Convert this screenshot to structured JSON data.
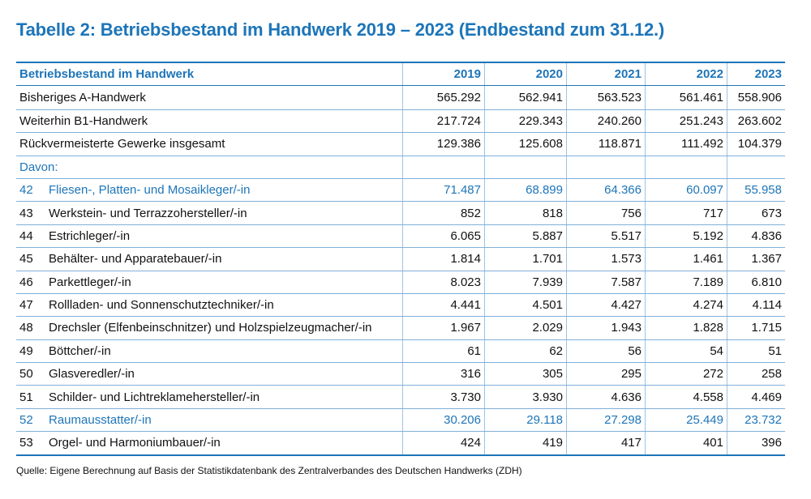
{
  "title": "Tabelle 2: Betriebsbestand im Handwerk 2019 – 2023 (Endbestand zum 31.12.)",
  "table": {
    "header": {
      "label": "Betriebsbestand im Handwerk",
      "years": [
        "2019",
        "2020",
        "2021",
        "2022",
        "2023"
      ]
    },
    "rows": [
      {
        "num": "",
        "label": "Bisheriges A-Handwerk",
        "values": [
          "565.292",
          "562.941",
          "563.523",
          "561.461",
          "558.906"
        ],
        "highlight": false
      },
      {
        "num": "",
        "label": "Weiterhin B1-Handwerk",
        "values": [
          "217.724",
          "229.343",
          "240.260",
          "251.243",
          "263.602"
        ],
        "highlight": false
      },
      {
        "num": "",
        "label": "Rückvermeisterte Gewerke insgesamt",
        "values": [
          "129.386",
          "125.608",
          "118.871",
          "111.492",
          "104.379"
        ],
        "highlight": false
      },
      {
        "num": "",
        "label": "Davon:",
        "values": [
          "",
          "",
          "",
          "",
          ""
        ],
        "highlight": true,
        "section": true
      },
      {
        "num": "42",
        "label": "Fliesen-, Platten- und Mosaikleger/-in",
        "values": [
          "71.487",
          "68.899",
          "64.366",
          "60.097",
          "55.958"
        ],
        "highlight": true
      },
      {
        "num": "43",
        "label": "Werkstein- und Terrazzohersteller/-in",
        "values": [
          "852",
          "818",
          "756",
          "717",
          "673"
        ],
        "highlight": false
      },
      {
        "num": "44",
        "label": "Estrichleger/-in",
        "values": [
          "6.065",
          "5.887",
          "5.517",
          "5.192",
          "4.836"
        ],
        "highlight": false
      },
      {
        "num": "45",
        "label": "Behälter- und Apparatebauer/-in",
        "values": [
          "1.814",
          "1.701",
          "1.573",
          "1.461",
          "1.367"
        ],
        "highlight": false
      },
      {
        "num": "46",
        "label": "Parkettleger/-in",
        "values": [
          "8.023",
          "7.939",
          "7.587",
          "7.189",
          "6.810"
        ],
        "highlight": false
      },
      {
        "num": "47",
        "label": "Rollladen- und Sonnenschutztechniker/-in",
        "values": [
          "4.441",
          "4.501",
          "4.427",
          "4.274",
          "4.114"
        ],
        "highlight": false
      },
      {
        "num": "48",
        "label": "Drechsler (Elfenbeinschnitzer) und Holzspielzeugmacher/-in",
        "values": [
          "1.967",
          "2.029",
          "1.943",
          "1.828",
          "1.715"
        ],
        "highlight": false
      },
      {
        "num": "49",
        "label": "Böttcher/-in",
        "values": [
          "61",
          "62",
          "56",
          "54",
          "51"
        ],
        "highlight": false
      },
      {
        "num": "50",
        "label": "Glasveredler/-in",
        "values": [
          "316",
          "305",
          "295",
          "272",
          "258"
        ],
        "highlight": false
      },
      {
        "num": "51",
        "label": "Schilder- und Lichtreklamehersteller/-in",
        "values": [
          "3.730",
          "3.930",
          "4.636",
          "4.558",
          "4.469"
        ],
        "highlight": false
      },
      {
        "num": "52",
        "label": "Raumausstatter/-in",
        "values": [
          "30.206",
          "29.118",
          "27.298",
          "25.449",
          "23.732"
        ],
        "highlight": true
      },
      {
        "num": "53",
        "label": "Orgel- und Harmoniumbauer/-in",
        "values": [
          "424",
          "419",
          "417",
          "401",
          "396"
        ],
        "highlight": false
      }
    ]
  },
  "source": "Quelle: Eigene Berechnung auf Basis der Statistikdatenbank des Zentralverbandes des Deutschen Handwerks (ZDH)",
  "colors": {
    "accent": "#1d75b8",
    "rule": "#7fb0d9"
  }
}
